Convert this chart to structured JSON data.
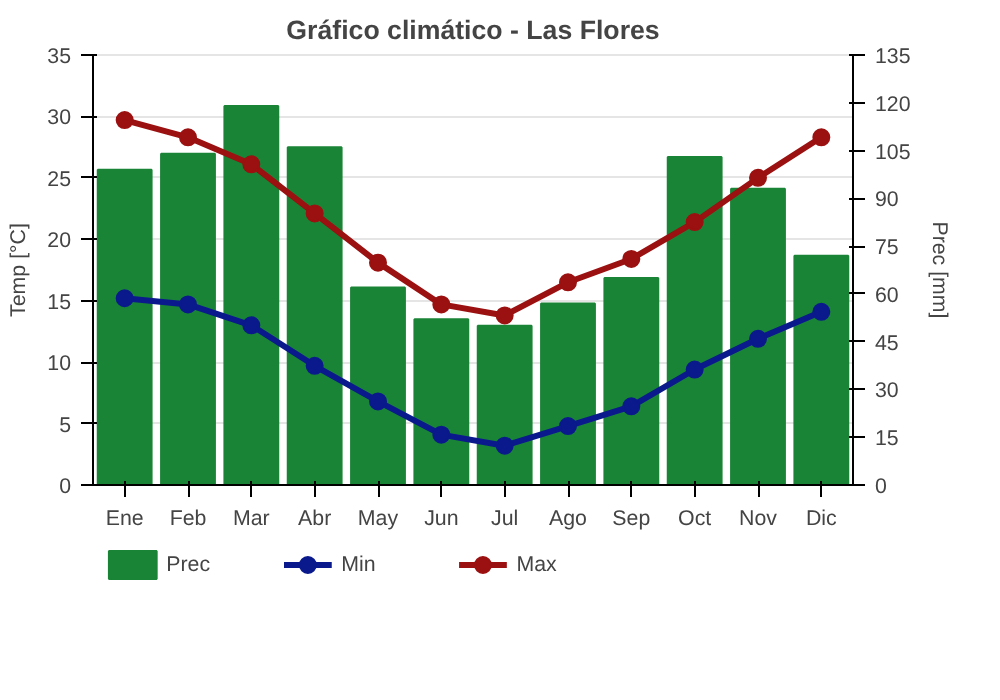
{
  "chart_data": {
    "type": "bar",
    "title": "Gráfico climático - Las Flores",
    "ylabel": "Temp [°C]",
    "y2label": "Prec [mm]",
    "categories": [
      "Ene",
      "Feb",
      "Mar",
      "Abr",
      "May",
      "Jun",
      "Jul",
      "Ago",
      "Sep",
      "Oct",
      "Nov",
      "Dic"
    ],
    "series": [
      {
        "name": "Prec",
        "axis": "y2",
        "color": "#1a8436",
        "values": [
          99,
          104,
          119,
          106,
          62,
          52,
          50,
          57,
          65,
          103,
          93,
          72
        ]
      },
      {
        "name": "Min",
        "type": "line",
        "color": "#0a1a8c",
        "values": [
          15.2,
          14.7,
          13.0,
          9.7,
          6.8,
          4.1,
          3.2,
          4.8,
          6.4,
          9.4,
          11.9,
          14.1
        ]
      },
      {
        "name": "Max",
        "type": "line",
        "color": "#9b1010",
        "values": [
          29.7,
          28.3,
          26.1,
          22.1,
          18.1,
          14.7,
          13.8,
          16.5,
          18.4,
          21.4,
          25.0,
          28.3
        ]
      }
    ],
    "ylim": [
      0,
      35
    ],
    "yticks": [
      0,
      5,
      10,
      15,
      20,
      25,
      30,
      35
    ],
    "y2lim": [
      0,
      135
    ],
    "y2ticks": [
      0,
      15,
      30,
      45,
      60,
      75,
      90,
      105,
      120,
      135
    ],
    "grid": "y",
    "legend": "bottom",
    "marker": "circle"
  }
}
